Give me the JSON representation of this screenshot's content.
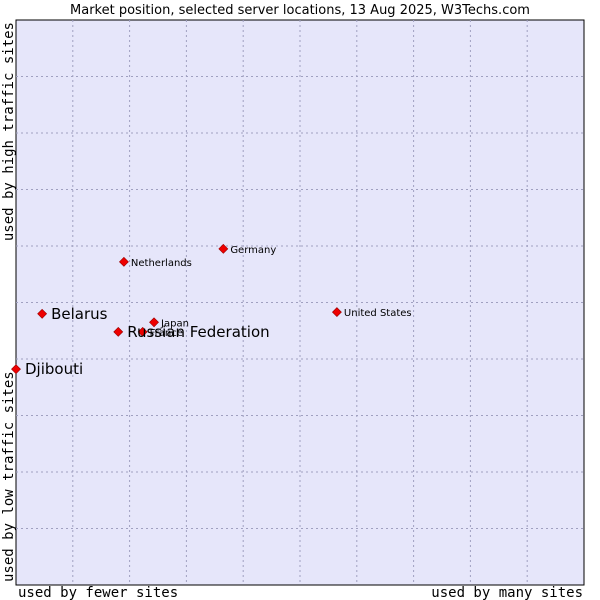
{
  "chart_data": {
    "type": "scatter",
    "title": "Market position, selected server locations, 13 Aug 2025, W3Techs.com",
    "xlabel_left": "used by fewer sites",
    "xlabel_right": "used by many sites",
    "ylabel_top": "used by high traffic sites",
    "ylabel_bottom": "used by low traffic sites",
    "xlim": [
      0,
      100
    ],
    "ylim": [
      0,
      100
    ],
    "grid": true,
    "colors": {
      "plot_bg": "#e6e6fa",
      "grid": "#a0a0c0",
      "marker": "#ee0000",
      "marker_edge": "#990000"
    },
    "points": [
      {
        "label": "Germany",
        "x": 36.5,
        "y": 59.5,
        "emphasis": false,
        "label_side": "right"
      },
      {
        "label": "Netherlands",
        "x": 19.0,
        "y": 57.2,
        "emphasis": false,
        "label_side": "right"
      },
      {
        "label": "United States",
        "x": 56.5,
        "y": 48.3,
        "emphasis": false,
        "label_side": "right"
      },
      {
        "label": "Belarus",
        "x": 4.6,
        "y": 48.0,
        "emphasis": true,
        "label_side": "right"
      },
      {
        "label": "Japan",
        "x": 24.3,
        "y": 46.5,
        "emphasis": false,
        "label_side": "right"
      },
      {
        "label": "France",
        "x": 22.3,
        "y": 44.8,
        "emphasis": false,
        "label_side": "right"
      },
      {
        "label": "Russian Federation",
        "x": 18.0,
        "y": 44.8,
        "emphasis": true,
        "label_side": "right"
      },
      {
        "label": "Djibouti",
        "x": 0.0,
        "y": 38.2,
        "emphasis": true,
        "label_side": "right"
      }
    ]
  }
}
